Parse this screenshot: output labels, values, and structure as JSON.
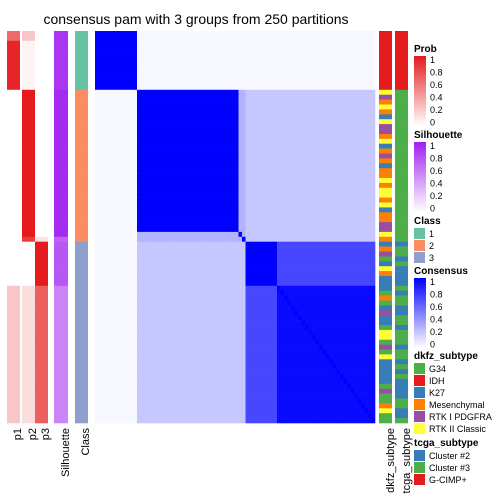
{
  "title": "consensus pam with 3 groups from 250 partitions",
  "chart_data": {
    "type": "heatmap",
    "n_samples": 80,
    "class_groups": [
      {
        "class": "1",
        "count": 12
      },
      {
        "class": "2",
        "count": 31
      },
      {
        "class": "3",
        "count": 37
      }
    ],
    "annotation_column_labels": [
      "p1",
      "p2",
      "p3",
      "Silhouette",
      "Class"
    ],
    "side_annotation_labels": [
      "dkfz_subtype",
      "tcga_subtype"
    ],
    "legends": {
      "prob": {
        "title": "Prob",
        "ticks": [
          "1",
          "0.8",
          "0.6",
          "0.4",
          "0.2",
          "0"
        ],
        "colors": [
          "#E41A1C",
          "#ffffff"
        ]
      },
      "silhouette": {
        "title": "Silhouette",
        "ticks": [
          "1",
          "0.8",
          "0.6",
          "0.4",
          "0.2",
          "0"
        ],
        "colors": [
          "#A020F0",
          "#ffffff"
        ]
      },
      "class": {
        "title": "Class",
        "items": [
          {
            "label": "1",
            "color": "#66C2A5"
          },
          {
            "label": "2",
            "color": "#FC8D62"
          },
          {
            "label": "3",
            "color": "#8DA0CB"
          }
        ]
      },
      "consensus": {
        "title": "Consensus",
        "ticks": [
          "1",
          "0.8",
          "0.6",
          "0.4",
          "0.2",
          "0"
        ],
        "colors": [
          "#0000FF",
          "#ffffff"
        ]
      },
      "dkfz_subtype": {
        "title": "dkfz_subtype",
        "items": [
          {
            "label": "G34",
            "color": "#4DAF4A"
          },
          {
            "label": "IDH",
            "color": "#E41A1C"
          },
          {
            "label": "K27",
            "color": "#377EB8"
          },
          {
            "label": "Mesenchymal",
            "color": "#FF7F00"
          },
          {
            "label": "RTK I PDGFRA",
            "color": "#984EA3"
          },
          {
            "label": "RTK II Classic",
            "color": "#FFFF33"
          }
        ]
      },
      "tcga_subtype": {
        "title": "tcga_subtype",
        "items": [
          {
            "label": "Cluster #2",
            "color": "#377EB8"
          },
          {
            "label": "Cluster #3",
            "color": "#4DAF4A"
          },
          {
            "label": "G-CIMP+",
            "color": "#E41A1C"
          }
        ]
      }
    }
  }
}
